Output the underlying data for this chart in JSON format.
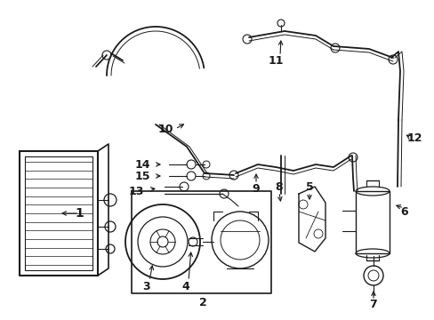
{
  "bg_color": "#ffffff",
  "line_color": "#1a1a1a",
  "figsize": [
    4.89,
    3.6
  ],
  "dpi": 100,
  "hose_lw": 1.3,
  "thin_lw": 0.7
}
